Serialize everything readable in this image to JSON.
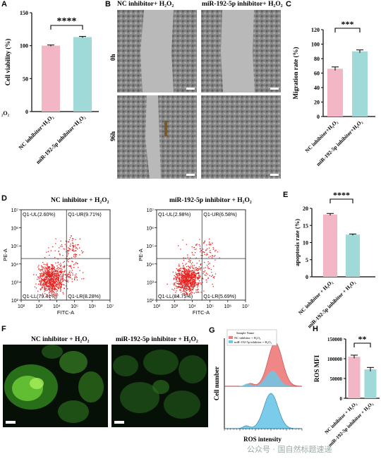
{
  "panels": {
    "A": {
      "label": "A",
      "left_fragment": "₂O₂",
      "chart_data": {
        "type": "bar",
        "categories": [
          "NC inhibitor+H₂O₂",
          "miR-192-5p inhibitor+H₂O₂"
        ],
        "values": [
          100,
          113
        ],
        "errors": [
          1,
          1
        ],
        "ylabel": "Cell viability (%)",
        "ylim": [
          0,
          150
        ],
        "yticks": [
          "0",
          "50",
          "100",
          "150"
        ],
        "significance": "****",
        "colors": [
          "#f3b6c4",
          "#9fd9d8"
        ]
      }
    },
    "B": {
      "label": "B",
      "col_titles": [
        "NC inhibitor+ H₂O₂",
        "miR-192-5p inhibitor+ H₂O₂"
      ],
      "row_labels": [
        "0h",
        "96h"
      ]
    },
    "C": {
      "label": "C",
      "chart_data": {
        "type": "bar",
        "categories": [
          "NC inhibitor+H₂O₂",
          "miR-192-5p inhibitor+H₂O₂"
        ],
        "values": [
          66,
          90
        ],
        "errors": [
          2.5,
          2
        ],
        "ylabel": "Migration rate (%)",
        "ylim": [
          0,
          120
        ],
        "yticks": [
          "0",
          "20",
          "40",
          "60",
          "80",
          "100",
          "120"
        ],
        "significance": "***",
        "colors": [
          "#f3b6c4",
          "#9fd9d8"
        ]
      }
    },
    "D": {
      "label": "D",
      "plots": [
        {
          "title": "NC inhibitor + H₂O₂",
          "quadrants": {
            "UL": "Q1-UL(2.60%)",
            "UR": "Q1-UR(9.71%)",
            "LL": "Q1-LL(79.41%)",
            "LR": "Q1-LR(8.28%)"
          }
        },
        {
          "title": "miR-192-5p inhibitor + H₂O₂",
          "quadrants": {
            "UL": "Q1-UL(2.98%)",
            "UR": "Q1-UR(6.58%)",
            "LL": "Q1-LL(84.75%)",
            "LR": "Q1-LR(5.69%)"
          }
        }
      ],
      "xlabel": "FITC-A",
      "ylabel": "PE-A",
      "ticks": [
        "10²",
        "10³",
        "10⁴",
        "10⁵",
        "10⁶",
        "10⁷"
      ],
      "chart_data": {
        "type": "scatter",
        "xlabel": "FITC-A",
        "ylabel": "PE-A",
        "xlim": [
          100,
          10000000
        ],
        "ylim": [
          100,
          10000000
        ],
        "quadrants_percent": [
          {
            "UL": 2.6,
            "UR": 9.71,
            "LL": 79.41,
            "LR": 8.28
          },
          {
            "UL": 2.98,
            "UR": 6.58,
            "LL": 84.75,
            "LR": 5.69
          }
        ],
        "point_color": "#e8231f"
      }
    },
    "E": {
      "label": "E",
      "chart_data": {
        "type": "bar",
        "categories": [
          "NC inhibitor + H₂O₂",
          "miR-192-5p inhibitor + H₂O₂"
        ],
        "values": [
          18.2,
          12.3
        ],
        "errors": [
          0.3,
          0.2
        ],
        "ylabel": "apoptosis rate (%)",
        "ylim": [
          0,
          20
        ],
        "yticks": [
          "0",
          "5",
          "10",
          "15",
          "20"
        ],
        "significance": "****",
        "colors": [
          "#f3b6c4",
          "#9fd9d8"
        ]
      }
    },
    "F": {
      "label": "F",
      "titles": [
        "NC inhibitor + H₂O₂",
        "miR-192-5p inhibitor + H₂O₂"
      ]
    },
    "G": {
      "label": "G",
      "legend_title": "Sample Name",
      "legend_items": [
        "NC inhibitor + H₂O₂",
        "miR-192-5p inhibitor + H₂O₂"
      ],
      "xlabel": "ROS intensity",
      "ylabel": "Cell number",
      "chart_data": {
        "type": "area",
        "xlabel": "ROS intensity",
        "ylabel": "Cell number",
        "series": [
          {
            "name": "NC inhibitor + H₂O₂",
            "color": "#ef7b7b"
          },
          {
            "name": "miR-192-5p inhibitor + H₂O₂",
            "color": "#6cc7e8"
          }
        ]
      }
    },
    "H": {
      "label": "H",
      "chart_data": {
        "type": "bar",
        "categories": [
          "NC inhibitor + H₂O₂",
          "miR-192-5p inhibitor + H₂O₂"
        ],
        "values": [
          105000,
          73000
        ],
        "errors": [
          4000,
          5000
        ],
        "ylabel": "ROS MFI",
        "ylim": [
          0,
          150000
        ],
        "yticks": [
          "0",
          "50000",
          "100000",
          "150000"
        ],
        "significance": "**",
        "colors": [
          "#f3b6c4",
          "#9fd9d8"
        ]
      }
    }
  },
  "watermark": "公众号 · 国自然标题速递"
}
